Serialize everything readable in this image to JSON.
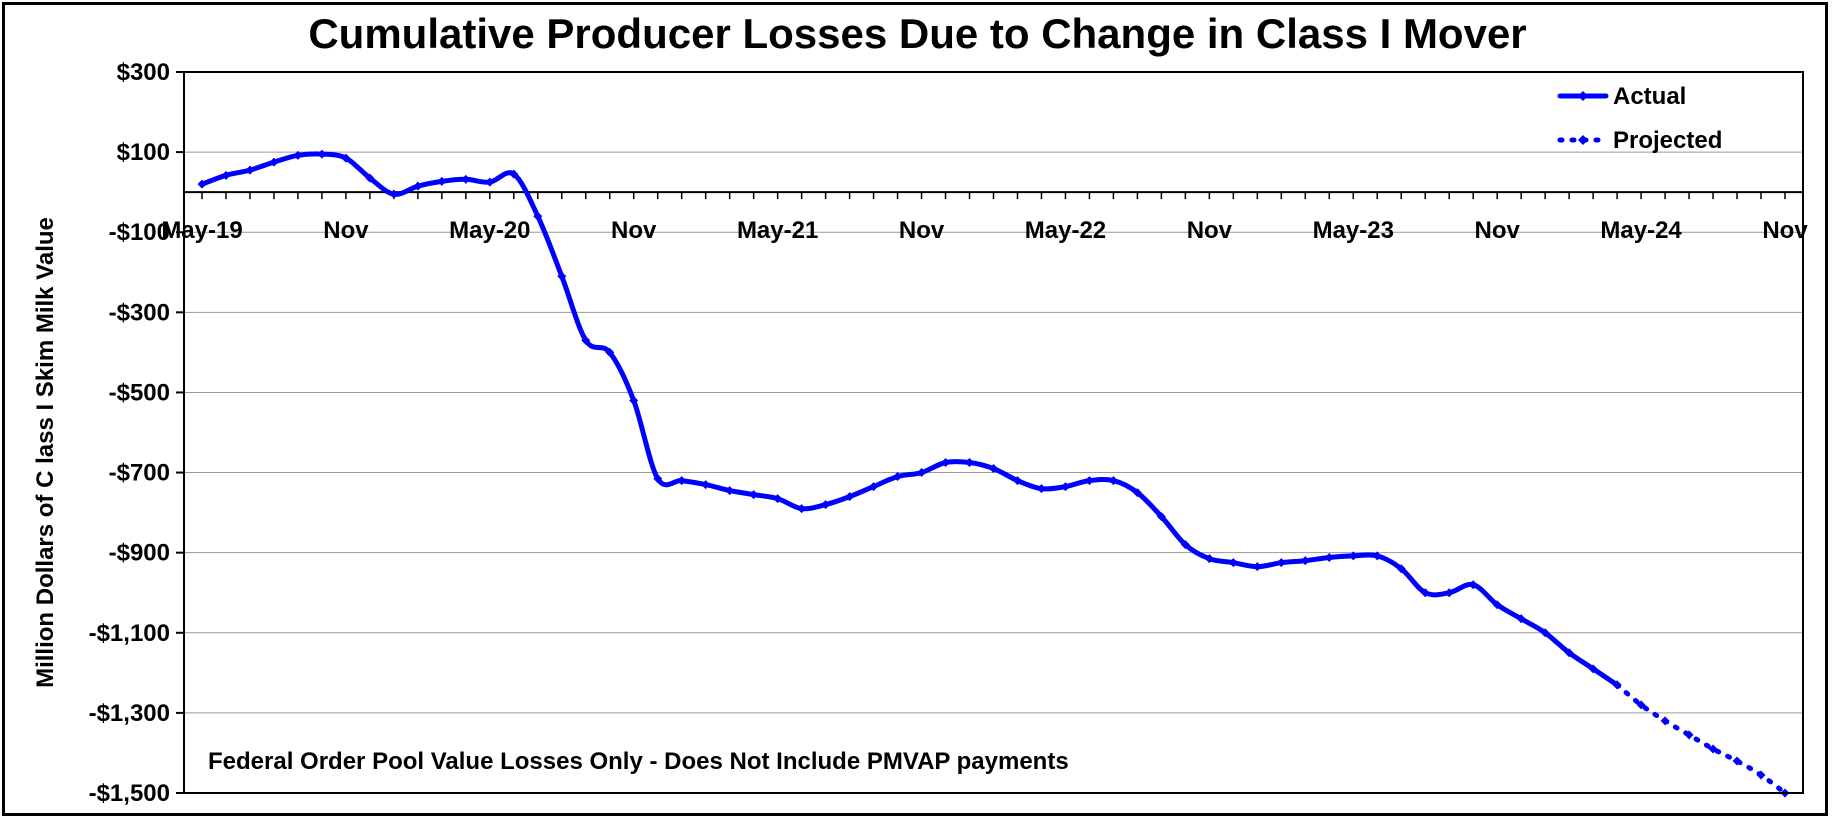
{
  "chart_data": {
    "type": "line",
    "title": "Cumulative Producer Losses Due to Change in Class I Mover",
    "ylabel": "Million Dollars of C lass I Skim Milk Value",
    "xlabel": "",
    "ylim": [
      -1500,
      300
    ],
    "yticks": [
      300,
      100,
      -100,
      -300,
      -500,
      -700,
      -900,
      -1100,
      -1300,
      -1500
    ],
    "ytick_labels": [
      "$300",
      "$100",
      "-$100",
      "-$300",
      "-$500",
      "-$700",
      "-$900",
      "-$1,100",
      "-$1,300",
      "-$1,500"
    ],
    "xtick_labels": [
      "May-19",
      "Nov",
      "May-20",
      "Nov",
      "May-21",
      "Nov",
      "May-22",
      "Nov",
      "May-23",
      "Nov",
      "May-24",
      "Nov"
    ],
    "grid": true,
    "legend": "top-right",
    "annotation": "Federal Order Pool Value Losses Only - Does Not Include PMVAP payments",
    "series": [
      {
        "name": "Actual",
        "style": "solid",
        "color": "#0000FF",
        "x": [
          0,
          1,
          2,
          3,
          4,
          5,
          6,
          7,
          8,
          9,
          10,
          11,
          12,
          13,
          14,
          15,
          16,
          17,
          18,
          19,
          20,
          21,
          22,
          23,
          24,
          25,
          26,
          27,
          28,
          29,
          30,
          31,
          32,
          33,
          34,
          35,
          36,
          37,
          38,
          39,
          40,
          41,
          42,
          43,
          44,
          45,
          46,
          47,
          48,
          49,
          50,
          51,
          52,
          53,
          54,
          55,
          56,
          57,
          58,
          59
        ],
        "values": [
          20,
          42,
          55,
          75,
          92,
          95,
          85,
          35,
          -5,
          15,
          27,
          32,
          25,
          45,
          -60,
          -210,
          -370,
          -400,
          -520,
          -715,
          -720,
          -730,
          -745,
          -755,
          -765,
          -790,
          -780,
          -760,
          -735,
          -710,
          -700,
          -675,
          -675,
          -690,
          -720,
          -740,
          -735,
          -720,
          -720,
          -750,
          -810,
          -880,
          -915,
          -925,
          -935,
          -925,
          -920,
          -912,
          -908,
          -908,
          -940,
          -1000,
          -1000,
          -980,
          -1030,
          -1065,
          -1100,
          -1150,
          -1190,
          -1230
        ]
      },
      {
        "name": "Projected",
        "style": "dotted",
        "color": "#0000FF",
        "x": [
          59,
          60,
          61,
          62,
          63,
          64,
          65,
          66
        ],
        "values": [
          -1230,
          -1280,
          -1320,
          -1355,
          -1390,
          -1420,
          -1455,
          -1500
        ]
      }
    ]
  }
}
